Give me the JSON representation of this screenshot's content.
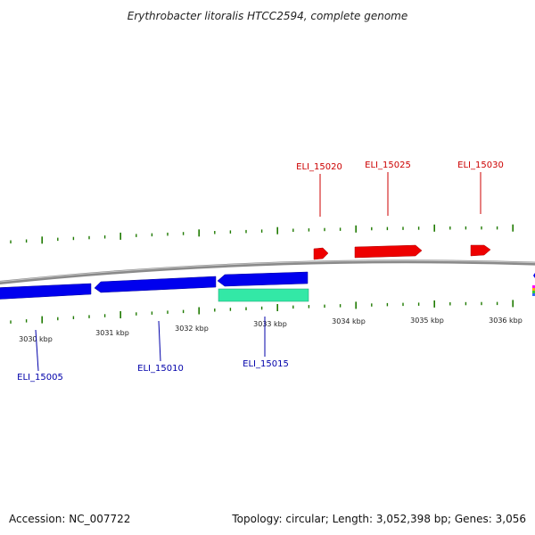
{
  "title": "Erythrobacter litoralis HTCC2594, complete genome",
  "footer": {
    "accession": "Accession: NC_007722",
    "summary": "Topology: circular; Length: 3,052,398 bp; Genes: 3,056"
  },
  "colors": {
    "backbone": "#8c8c8c",
    "tick": "#1f7a00",
    "forward_gene": "#ee0000",
    "reverse_gene": "#0000ee",
    "rna_gene": "#33e8a6",
    "forward_label": "#cc0000",
    "reverse_label": "#0000aa"
  },
  "scale_labels": [
    "3030 kbp",
    "3031 kbp",
    "3032 kbp",
    "3033 kbp",
    "3034 kbp",
    "3035 kbp",
    "3036 kbp"
  ],
  "genes": {
    "forward": [
      {
        "label": "ELI_15020",
        "strand": "+"
      },
      {
        "label": "ELI_15025",
        "strand": "+"
      },
      {
        "label": "ELI_15030",
        "strand": "+"
      }
    ],
    "reverse": [
      {
        "label": "ELI_15005",
        "strand": "-"
      },
      {
        "label": "ELI_15010",
        "strand": "-"
      },
      {
        "label": "ELI_15015",
        "strand": "-"
      }
    ]
  }
}
